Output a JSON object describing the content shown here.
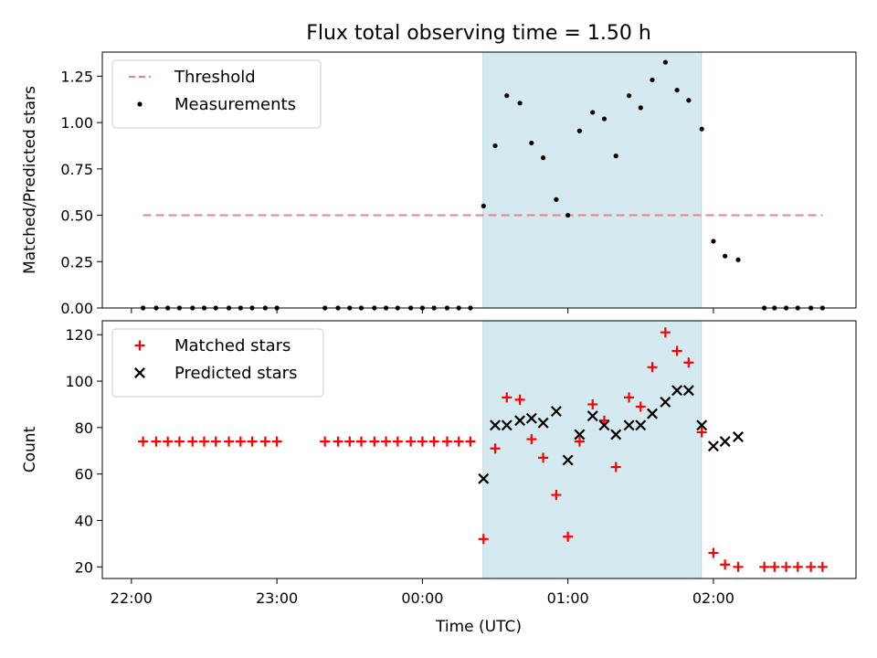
{
  "chart_data": {
    "title": "Flux total observing time = 1.50 h",
    "xlabel": "Time (UTC)",
    "x_unit": "hours UTC (00:00 = 0; earlier times negative)",
    "xlim": [
      -2.2,
      2.98
    ],
    "x_ticks": [
      {
        "value": -2,
        "label": "22:00"
      },
      {
        "value": -1,
        "label": "23:00"
      },
      {
        "value": 0,
        "label": "00:00"
      },
      {
        "value": 1,
        "label": "01:00"
      },
      {
        "value": 2,
        "label": "02:00"
      }
    ],
    "shaded_interval": {
      "x0": 0.417,
      "x1": 1.917,
      "color": "#d4eaf0"
    },
    "panels": [
      {
        "id": "ratio",
        "type": "scatter",
        "ylabel": "Matched/Predicted stars",
        "ylim": [
          0,
          1.38
        ],
        "y_ticks": [
          {
            "value": 0,
            "label": "0.00"
          },
          {
            "value": 0.25,
            "label": "0.25"
          },
          {
            "value": 0.5,
            "label": "0.50"
          },
          {
            "value": 0.75,
            "label": "0.75"
          },
          {
            "value": 1.0,
            "label": "1.00"
          },
          {
            "value": 1.25,
            "label": "1.25"
          }
        ],
        "legend": {
          "placement": "top-left",
          "entries": [
            {
              "name": "Threshold",
              "marker": "dashed-line",
              "color": "#f08080"
            },
            {
              "name": "Measurements",
              "marker": "dot",
              "color": "#000000"
            }
          ]
        },
        "threshold": {
          "name": "Threshold",
          "y": 0.5,
          "x_range": [
            -1.92,
            2.75
          ],
          "color": "#f08080"
        },
        "series": [
          {
            "name": "Measurements",
            "marker": "dot",
            "color": "#000000",
            "points": [
              [
                -1.92,
                0
              ],
              [
                -1.83,
                0
              ],
              [
                -1.75,
                0
              ],
              [
                -1.67,
                0
              ],
              [
                -1.58,
                0
              ],
              [
                -1.5,
                0
              ],
              [
                -1.42,
                0
              ],
              [
                -1.33,
                0
              ],
              [
                -1.25,
                0
              ],
              [
                -1.17,
                0
              ],
              [
                -1.08,
                0
              ],
              [
                -1.0,
                0
              ],
              [
                -0.67,
                0
              ],
              [
                -0.58,
                0
              ],
              [
                -0.5,
                0
              ],
              [
                -0.42,
                0
              ],
              [
                -0.33,
                0
              ],
              [
                -0.25,
                0
              ],
              [
                -0.17,
                0
              ],
              [
                -0.08,
                0
              ],
              [
                0,
                0
              ],
              [
                0.08,
                0
              ],
              [
                0.17,
                0
              ],
              [
                0.25,
                0
              ],
              [
                0.33,
                0
              ],
              [
                0.42,
                0.55
              ],
              [
                0.5,
                0.875
              ],
              [
                0.58,
                1.145
              ],
              [
                0.67,
                1.105
              ],
              [
                0.75,
                0.89
              ],
              [
                0.83,
                0.81
              ],
              [
                0.92,
                0.585
              ],
              [
                1.0,
                0.5
              ],
              [
                1.08,
                0.955
              ],
              [
                1.17,
                1.055
              ],
              [
                1.25,
                1.02
              ],
              [
                1.33,
                0.82
              ],
              [
                1.42,
                1.145
              ],
              [
                1.5,
                1.08
              ],
              [
                1.58,
                1.23
              ],
              [
                1.67,
                1.325
              ],
              [
                1.75,
                1.175
              ],
              [
                1.83,
                1.12
              ],
              [
                1.92,
                0.965
              ],
              [
                2.0,
                0.36
              ],
              [
                2.08,
                0.28
              ],
              [
                2.17,
                0.26
              ],
              [
                2.35,
                0
              ],
              [
                2.42,
                0
              ],
              [
                2.5,
                0
              ],
              [
                2.58,
                0
              ],
              [
                2.67,
                0
              ],
              [
                2.75,
                0
              ]
            ]
          }
        ]
      },
      {
        "id": "count",
        "type": "scatter",
        "ylabel": "Count",
        "ylim": [
          15,
          126
        ],
        "y_ticks": [
          {
            "value": 20,
            "label": "20"
          },
          {
            "value": 40,
            "label": "40"
          },
          {
            "value": 60,
            "label": "60"
          },
          {
            "value": 80,
            "label": "80"
          },
          {
            "value": 100,
            "label": "100"
          },
          {
            "value": 120,
            "label": "120"
          }
        ],
        "legend": {
          "placement": "top-left",
          "entries": [
            {
              "name": "Matched stars",
              "marker": "plus",
              "color": "#ff0000"
            },
            {
              "name": "Predicted stars",
              "marker": "x",
              "color": "#000000"
            }
          ]
        },
        "series": [
          {
            "name": "Matched stars",
            "marker": "plus",
            "color": "#ff0000",
            "points": [
              [
                -1.92,
                74
              ],
              [
                -1.83,
                74
              ],
              [
                -1.75,
                74
              ],
              [
                -1.67,
                74
              ],
              [
                -1.58,
                74
              ],
              [
                -1.5,
                74
              ],
              [
                -1.42,
                74
              ],
              [
                -1.33,
                74
              ],
              [
                -1.25,
                74
              ],
              [
                -1.17,
                74
              ],
              [
                -1.08,
                74
              ],
              [
                -1.0,
                74
              ],
              [
                -0.67,
                74
              ],
              [
                -0.58,
                74
              ],
              [
                -0.5,
                74
              ],
              [
                -0.42,
                74
              ],
              [
                -0.33,
                74
              ],
              [
                -0.25,
                74
              ],
              [
                -0.17,
                74
              ],
              [
                -0.08,
                74
              ],
              [
                0,
                74
              ],
              [
                0.08,
                74
              ],
              [
                0.17,
                74
              ],
              [
                0.25,
                74
              ],
              [
                0.33,
                74
              ],
              [
                0.42,
                32
              ],
              [
                0.5,
                71
              ],
              [
                0.58,
                93
              ],
              [
                0.67,
                92
              ],
              [
                0.75,
                75
              ],
              [
                0.83,
                67
              ],
              [
                0.92,
                51
              ],
              [
                1.0,
                33
              ],
              [
                1.08,
                74
              ],
              [
                1.17,
                90
              ],
              [
                1.25,
                83
              ],
              [
                1.33,
                63
              ],
              [
                1.42,
                93
              ],
              [
                1.5,
                89
              ],
              [
                1.58,
                106
              ],
              [
                1.67,
                121
              ],
              [
                1.75,
                113
              ],
              [
                1.83,
                108
              ],
              [
                1.92,
                78
              ],
              [
                2.0,
                26
              ],
              [
                2.08,
                21
              ],
              [
                2.17,
                20
              ],
              [
                2.35,
                20
              ],
              [
                2.42,
                20
              ],
              [
                2.5,
                20
              ],
              [
                2.58,
                20
              ],
              [
                2.67,
                20
              ],
              [
                2.75,
                20
              ]
            ]
          },
          {
            "name": "Predicted stars",
            "marker": "x",
            "color": "#000000",
            "points": [
              [
                0.42,
                58
              ],
              [
                0.5,
                81
              ],
              [
                0.58,
                81
              ],
              [
                0.67,
                83
              ],
              [
                0.75,
                84
              ],
              [
                0.83,
                82
              ],
              [
                0.92,
                87
              ],
              [
                1.0,
                66
              ],
              [
                1.08,
                77
              ],
              [
                1.17,
                85
              ],
              [
                1.25,
                81
              ],
              [
                1.33,
                77
              ],
              [
                1.42,
                81
              ],
              [
                1.5,
                81
              ],
              [
                1.58,
                86
              ],
              [
                1.67,
                91
              ],
              [
                1.75,
                96
              ],
              [
                1.83,
                96
              ],
              [
                1.92,
                81
              ],
              [
                2.0,
                72
              ],
              [
                2.08,
                74
              ],
              [
                2.17,
                76
              ]
            ]
          }
        ]
      }
    ]
  }
}
